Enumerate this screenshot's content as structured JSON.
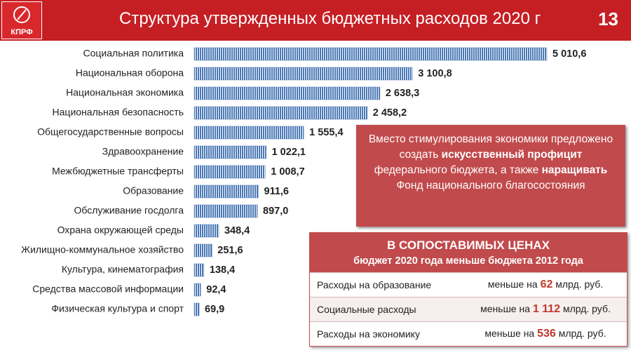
{
  "header": {
    "logo_text": "КПРФ",
    "title": "Структура утвержденных бюджетных расходов 2020 г",
    "page_number": "13"
  },
  "chart_data": {
    "type": "hbar",
    "color": "#4a78b5",
    "categories": [
      "Социальная политика",
      "Национальная оборона",
      "Национальная экономика",
      "Национальная безопасность",
      "Общегосударственные вопросы",
      "Здравоохранение",
      "Межбюджетные трансферты",
      "Образование",
      "Обслуживание госдолга",
      "Охрана окружающей среды",
      "Жилищно-коммунальное хозяйство",
      "Культура, кинематография",
      "Средства массовой информации",
      "Физическая культура и спорт"
    ],
    "values": [
      5010.6,
      3100.8,
      2638.3,
      2458.2,
      1555.4,
      1022.1,
      1008.7,
      911.6,
      897.0,
      348.4,
      251.6,
      138.4,
      92.4,
      69.9
    ],
    "value_labels": [
      "5 010,6",
      "3 100,8",
      "2 638,3",
      "2 458,2",
      "1 555,4",
      "1 022,1",
      "1 008,7",
      "911,6",
      "897,0",
      "348,4",
      "251,6",
      "138,4",
      "92,4",
      "69,9"
    ]
  },
  "callout": {
    "runs": [
      {
        "text": "Вместо стимулирования экономики предложено создать ",
        "bold": false
      },
      {
        "text": "искусственный профицит",
        "bold": true
      },
      {
        "text": " федерального бюджета, а также ",
        "bold": false
      },
      {
        "text": "наращивать",
        "bold": true
      },
      {
        "text": " Фонд национального благосостояния",
        "bold": false
      }
    ]
  },
  "table": {
    "title": "В СОПОСТАВИМЫХ ЦЕНАХ",
    "subtitle": "бюджет 2020 года меньше бюджета 2012 года",
    "rows": [
      {
        "label": "Расходы на образование",
        "prefix": "меньше на",
        "amount": "62",
        "unit": "млрд. руб."
      },
      {
        "label": "Социальные расходы",
        "prefix": "меньше на",
        "amount": "1 112",
        "unit": "млрд. руб."
      },
      {
        "label": "Расходы на экономику",
        "prefix": "меньше на",
        "amount": "536",
        "unit": "млрд. руб."
      }
    ]
  }
}
